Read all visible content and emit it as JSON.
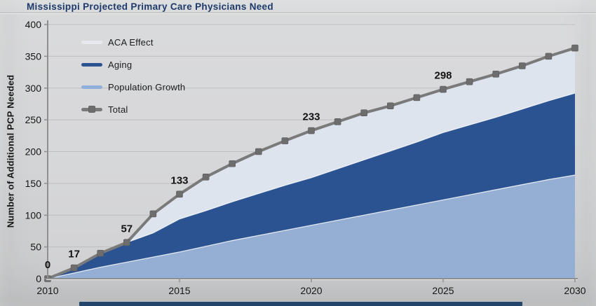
{
  "title": "Mississippi Projected Primary Care Physicians Need",
  "chart_data": {
    "type": "area",
    "stacked": true,
    "title": "Mississippi Projected Primary Care Physicians Need",
    "ylabel": "Number of Additional PCP Needed",
    "xlabel": "",
    "xlim": [
      2010,
      2030
    ],
    "ylim": [
      0,
      400
    ],
    "ytick_step": 50,
    "yticks": [
      0,
      50,
      100,
      150,
      200,
      250,
      300,
      350,
      400
    ],
    "xticks": [
      2010,
      2015,
      2020,
      2025,
      2030
    ],
    "grid": true,
    "legend_position": "top-left",
    "x": [
      2010,
      2011,
      2012,
      2013,
      2014,
      2015,
      2016,
      2017,
      2018,
      2019,
      2020,
      2021,
      2022,
      2023,
      2024,
      2025,
      2026,
      2027,
      2028,
      2029,
      2030
    ],
    "series": [
      {
        "name": "Population Growth",
        "color": "#94afd3",
        "values": [
          0,
          9,
          18,
          26,
          34,
          42,
          51,
          60,
          68,
          76,
          84,
          92,
          100,
          108,
          116,
          124,
          132,
          140,
          148,
          156,
          163
        ]
      },
      {
        "name": "Aging",
        "color": "#2b5391",
        "values": [
          0,
          8,
          22,
          31,
          38,
          52,
          56,
          61,
          66,
          71,
          75,
          81,
          87,
          93,
          99,
          106,
          110,
          114,
          119,
          124,
          129
        ]
      },
      {
        "name": "ACA Effect",
        "color": "#dde4ee",
        "values": [
          0,
          0,
          0,
          0,
          30,
          39,
          53,
          60,
          66,
          70,
          74,
          74,
          74,
          71,
          70,
          68,
          68,
          68,
          68,
          70,
          71
        ]
      }
    ],
    "total": {
      "name": "Total",
      "color": "#7a7a7a",
      "values": [
        0,
        17,
        40,
        57,
        102,
        133,
        160,
        181,
        200,
        217,
        233,
        247,
        261,
        272,
        285,
        298,
        310,
        322,
        335,
        350,
        363
      ]
    },
    "annotations": [
      {
        "x": 2010,
        "label": "0"
      },
      {
        "x": 2011,
        "label": "17"
      },
      {
        "x": 2013,
        "label": "57"
      },
      {
        "x": 2015,
        "label": "133"
      },
      {
        "x": 2020,
        "label": "233"
      },
      {
        "x": 2025,
        "label": "298"
      }
    ],
    "legend": [
      {
        "label": "ACA Effect",
        "color": "#e6e9ee",
        "marker": false
      },
      {
        "label": "Aging",
        "color": "#2b5391",
        "marker": false
      },
      {
        "label": "Population Growth",
        "color": "#8fb0d9",
        "marker": false
      },
      {
        "label": "Total",
        "color": "#7a7a7a",
        "marker": true
      }
    ],
    "colors": {
      "gridline": "#bdbebf",
      "axis": "#8f8f8f",
      "tick_text": "#161616",
      "annotation_text": "#121212",
      "marker": "#6d6d6d",
      "title": "#1d3a6b"
    }
  }
}
